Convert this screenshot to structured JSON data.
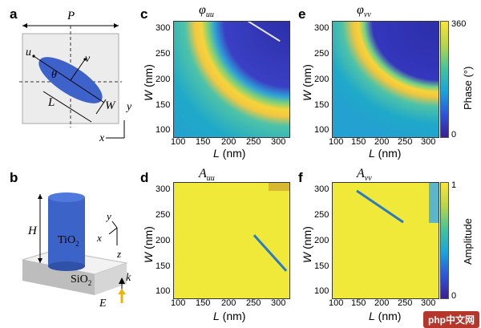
{
  "panels": {
    "a": "a",
    "b": "b",
    "c": "c",
    "d": "d",
    "e": "e",
    "f": "f"
  },
  "schematic_a": {
    "P": "P",
    "u": "u",
    "v": "v",
    "theta": "θ",
    "L": "L",
    "W": "W",
    "x": "x",
    "y": "y"
  },
  "schematic_b": {
    "H": "H",
    "pillar": "TiO",
    "pillar_sub": "2",
    "substrate": "SiO",
    "substrate_sub": "2",
    "y": "y",
    "x": "x",
    "z": "z",
    "k": "k",
    "E": "E"
  },
  "maps": {
    "c": {
      "title_main": "φ",
      "title_sub": "uu"
    },
    "e": {
      "title_main": "φ",
      "title_sub": "vv"
    },
    "d": {
      "title_main": "A",
      "title_sub": "uu"
    },
    "f": {
      "title_main": "A",
      "title_sub": "vv"
    }
  },
  "axes": {
    "xlabel_var": "L",
    "xlabel_unit": " (nm)",
    "ylabel_var": "W",
    "ylabel_unit": " (nm)",
    "xticks": [
      "100",
      "150",
      "200",
      "250",
      "300"
    ],
    "yticks": [
      "300",
      "250",
      "200",
      "150",
      "100"
    ]
  },
  "colorbars": {
    "phase": {
      "label": "Phase (°)",
      "max": "360",
      "min": "0"
    },
    "amplitude": {
      "label": "Amplitude",
      "max": "1",
      "min": "0"
    }
  },
  "watermark": "php中文网"
}
